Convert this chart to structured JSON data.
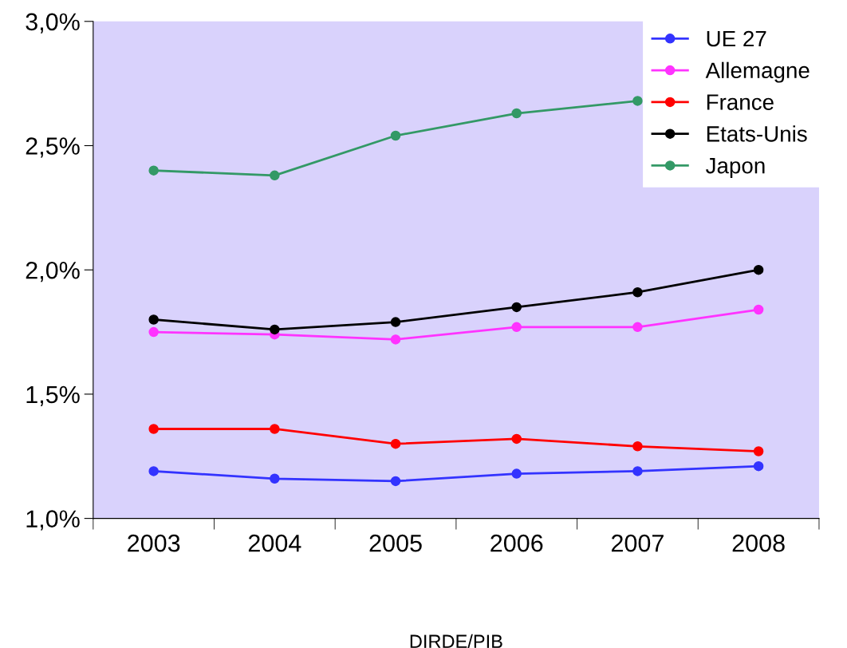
{
  "chart_data": {
    "type": "line",
    "xlabel": "DIRDE/PIB",
    "categories": [
      "2003",
      "2004",
      "2005",
      "2006",
      "2007",
      "2008"
    ],
    "series": [
      {
        "name": "UE 27",
        "color": "#3333ff",
        "values": [
          1.19,
          1.16,
          1.15,
          1.18,
          1.19,
          1.21
        ]
      },
      {
        "name": "Allemagne",
        "color": "#ff33ff",
        "values": [
          1.75,
          1.74,
          1.72,
          1.77,
          1.77,
          1.84
        ]
      },
      {
        "name": "France",
        "color": "#ff0000",
        "values": [
          1.36,
          1.36,
          1.3,
          1.32,
          1.29,
          1.27
        ]
      },
      {
        "name": "Etats-Unis",
        "color": "#000000",
        "values": [
          1.8,
          1.76,
          1.79,
          1.85,
          1.91,
          2.0
        ]
      },
      {
        "name": "Japon",
        "color": "#339966",
        "values": [
          2.4,
          2.38,
          2.54,
          2.63,
          2.68,
          null
        ]
      }
    ],
    "ylim": [
      1.0,
      3.0
    ],
    "yticks": [
      {
        "value": 1.0,
        "label": "1,0%"
      },
      {
        "value": 1.5,
        "label": "1,5%"
      },
      {
        "value": 2.0,
        "label": "2,0%"
      },
      {
        "value": 2.5,
        "label": "2,5%"
      },
      {
        "value": 3.0,
        "label": "3,0%"
      }
    ],
    "grid": false,
    "legend": "top right",
    "marker": "circle",
    "line_style": "solid"
  }
}
